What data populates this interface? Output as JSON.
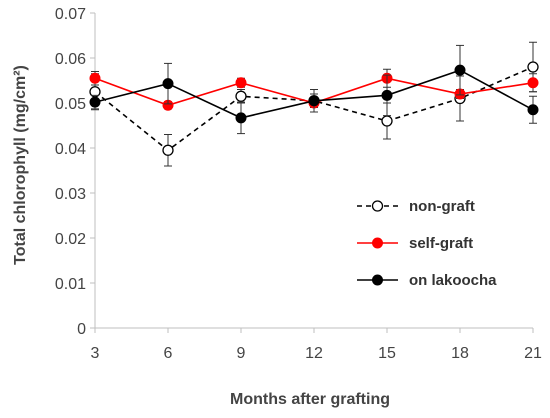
{
  "chart_data": {
    "type": "line",
    "xlabel": "Months after grafting",
    "ylabel": "Total chlorophyll (mg/cm²)",
    "x": [
      3,
      6,
      9,
      12,
      15,
      18,
      21
    ],
    "x_tick_labels": [
      "3",
      "6",
      "9",
      "12",
      "15",
      "18",
      "21"
    ],
    "ylim": [
      0,
      0.07
    ],
    "y_ticks": [
      0,
      0.01,
      0.02,
      0.03,
      0.04,
      0.05,
      0.06,
      0.07
    ],
    "y_tick_labels": [
      "0",
      "0.01",
      "0.02",
      "0.03",
      "0.04",
      "0.05",
      "0.06",
      "0.07"
    ],
    "grid": false,
    "legend_position": "bottom-right",
    "series": [
      {
        "name": "non-graft",
        "values": [
          0.0525,
          0.0395,
          0.0515,
          0.0505,
          0.046,
          0.051,
          0.058
        ],
        "error": [
          0.004,
          0.0035,
          0.0015,
          0.0015,
          0.004,
          0.005,
          0.0055
        ],
        "line_color": "#000000",
        "line_style": "dashed",
        "marker": "open-circle"
      },
      {
        "name": "self-graft",
        "values": [
          0.0555,
          0.0495,
          0.0545,
          0.05,
          0.0555,
          0.052,
          0.0545
        ],
        "error": [
          0.0015,
          0.0008,
          0.001,
          0.001,
          0.002,
          0.001,
          0.002
        ],
        "line_color": "#ff0000",
        "line_style": "solid",
        "marker": "filled-circle-red"
      },
      {
        "name": "on lakoocha",
        "values": [
          0.0502,
          0.0543,
          0.0467,
          0.0505,
          0.0517,
          0.0573,
          0.0485
        ],
        "error": [
          0.0015,
          0.0045,
          0.0035,
          0.0025,
          0.0045,
          0.0055,
          0.003
        ],
        "line_color": "#000000",
        "line_style": "solid",
        "marker": "filled-circle-black"
      }
    ]
  }
}
